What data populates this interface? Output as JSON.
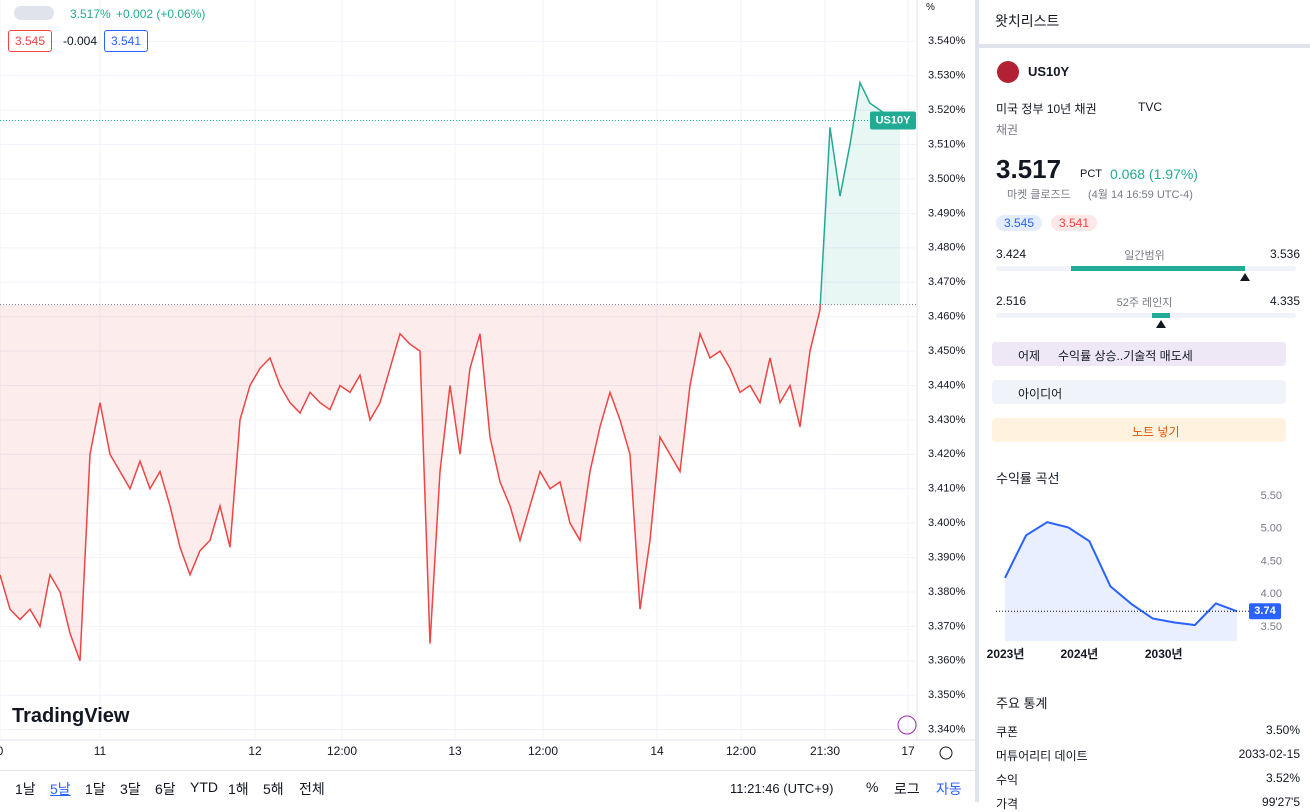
{
  "header": {
    "last": "3.517%",
    "change": "+0.002 (+0.06%)",
    "bid": "3.545",
    "spread": "-0.004",
    "ask": "3.541"
  },
  "chart_data": {
    "type": "line",
    "y_unit": "%",
    "color": "#ef4444",
    "color_above": "#22ab94",
    "baseline": 3.4635,
    "price_tag": "US10Y",
    "xlim": [
      0,
      91
    ],
    "ylim": [
      3.337,
      3.552
    ],
    "xticks": [
      {
        "value": 0,
        "label": "0"
      },
      {
        "value": 10,
        "label": "11"
      },
      {
        "value": 25.5,
        "label": "12"
      },
      {
        "value": 34.2,
        "label": "12:00"
      },
      {
        "value": 45.5,
        "label": "13"
      },
      {
        "value": 54.3,
        "label": "12:00"
      },
      {
        "value": 65.7,
        "label": "14"
      },
      {
        "value": 74.1,
        "label": "12:00"
      },
      {
        "value": 82.5,
        "label": "21:30"
      },
      {
        "value": 90.8,
        "label": "17"
      }
    ],
    "yticks": [
      {
        "value": 3.54,
        "label": "3.540%"
      },
      {
        "value": 3.53,
        "label": "3.530%"
      },
      {
        "value": 3.52,
        "label": "3.520%"
      },
      {
        "value": 3.51,
        "label": "3.510%"
      },
      {
        "value": 3.5,
        "label": "3.500%"
      },
      {
        "value": 3.49,
        "label": "3.490%"
      },
      {
        "value": 3.48,
        "label": "3.480%"
      },
      {
        "value": 3.47,
        "label": "3.470%"
      },
      {
        "value": 3.46,
        "label": "3.460%"
      },
      {
        "value": 3.45,
        "label": "3.450%"
      },
      {
        "value": 3.44,
        "label": "3.440%"
      },
      {
        "value": 3.43,
        "label": "3.430%"
      },
      {
        "value": 3.42,
        "label": "3.420%"
      },
      {
        "value": 3.41,
        "label": "3.410%"
      },
      {
        "value": 3.4,
        "label": "3.400%"
      },
      {
        "value": 3.39,
        "label": "3.390%"
      },
      {
        "value": 3.38,
        "label": "3.380%"
      },
      {
        "value": 3.37,
        "label": "3.370%"
      },
      {
        "value": 3.36,
        "label": "3.360%"
      },
      {
        "value": 3.35,
        "label": "3.350%"
      },
      {
        "value": 3.34,
        "label": "3.340%"
      }
    ],
    "values": [
      3.385,
      3.375,
      3.372,
      3.375,
      3.37,
      3.385,
      3.38,
      3.368,
      3.36,
      3.42,
      3.435,
      3.42,
      3.415,
      3.41,
      3.418,
      3.41,
      3.415,
      3.405,
      3.393,
      3.385,
      3.392,
      3.395,
      3.405,
      3.393,
      3.43,
      3.44,
      3.445,
      3.448,
      3.44,
      3.435,
      3.432,
      3.438,
      3.435,
      3.433,
      3.44,
      3.438,
      3.443,
      3.43,
      3.435,
      3.445,
      3.455,
      3.452,
      3.45,
      3.365,
      3.415,
      3.44,
      3.42,
      3.445,
      3.455,
      3.425,
      3.412,
      3.405,
      3.395,
      3.405,
      3.415,
      3.41,
      3.412,
      3.4,
      3.395,
      3.415,
      3.428,
      3.438,
      3.43,
      3.42,
      3.375,
      3.395,
      3.425,
      3.42,
      3.415,
      3.44,
      3.455,
      3.448,
      3.45,
      3.445,
      3.438,
      3.44,
      3.435,
      3.448,
      3.435,
      3.44,
      3.428,
      3.45,
      3.462,
      3.515,
      3.495,
      3.51,
      3.528,
      3.522,
      3.52,
      3.518,
      3.517
    ]
  },
  "watermark": "TradingView",
  "toolbar": {
    "ranges": [
      "1날",
      "5날",
      "1달",
      "3달",
      "6달",
      "YTD",
      "1해",
      "5해",
      "전체"
    ],
    "time": "11:21:46 (UTC+9)",
    "percent": "%",
    "log": "로그",
    "auto": "자동"
  },
  "sidebar": {
    "title": "왓치리스트",
    "symbol": "US10Y",
    "name": "미국 정부 10년 채권",
    "exchange": "TVC",
    "category": "채권",
    "price": "3.517",
    "unit": "PCT",
    "change": "0.068 (1.97%)",
    "status": "마켓 클로즈드",
    "time": "(4월 14 16:59 UTC-4)",
    "bid": "3.545",
    "ask": "3.541",
    "day_range": {
      "low": 3.424,
      "label": "일간범위",
      "high": 3.536,
      "current": 3.517
    },
    "week52_range": {
      "low": 2.516,
      "label": "52주 레인지",
      "high": 4.335,
      "current": 3.517
    },
    "news_day": "어제",
    "news": "수익률 상승..기술적 매도세",
    "ideas": "아이디어",
    "note": "노트 넣기",
    "stats_title": "주요 통계",
    "stats": [
      [
        "쿠폰",
        "3.50%"
      ],
      [
        "머튜어리티 데이트",
        "2033-02-15"
      ],
      [
        "수익",
        "3.52%"
      ],
      [
        "가격",
        "99'27'5"
      ]
    ]
  },
  "curve_data": {
    "type": "line",
    "title": "수익률 곡선",
    "color": "#2962ff",
    "ylim": [
      3.28,
      5.5
    ],
    "xlim": [
      0,
      11
    ],
    "yticks": [
      {
        "value": 3.5,
        "label": "3.50"
      },
      {
        "value": 4,
        "label": "4.00"
      },
      {
        "value": 4.5,
        "label": "4.50"
      },
      {
        "value": 5,
        "label": "5.00"
      },
      {
        "value": 5.5,
        "label": "5.50"
      }
    ],
    "xticks": [
      {
        "value": 0.5,
        "label": "2023년"
      },
      {
        "value": 4,
        "label": "2024년"
      },
      {
        "value": 8,
        "label": "2030년"
      }
    ],
    "values": [
      4.25,
      4.9,
      5.1,
      5.02,
      4.81,
      4.12,
      3.85,
      3.63,
      3.57,
      3.53,
      3.86,
      3.74
    ]
  }
}
